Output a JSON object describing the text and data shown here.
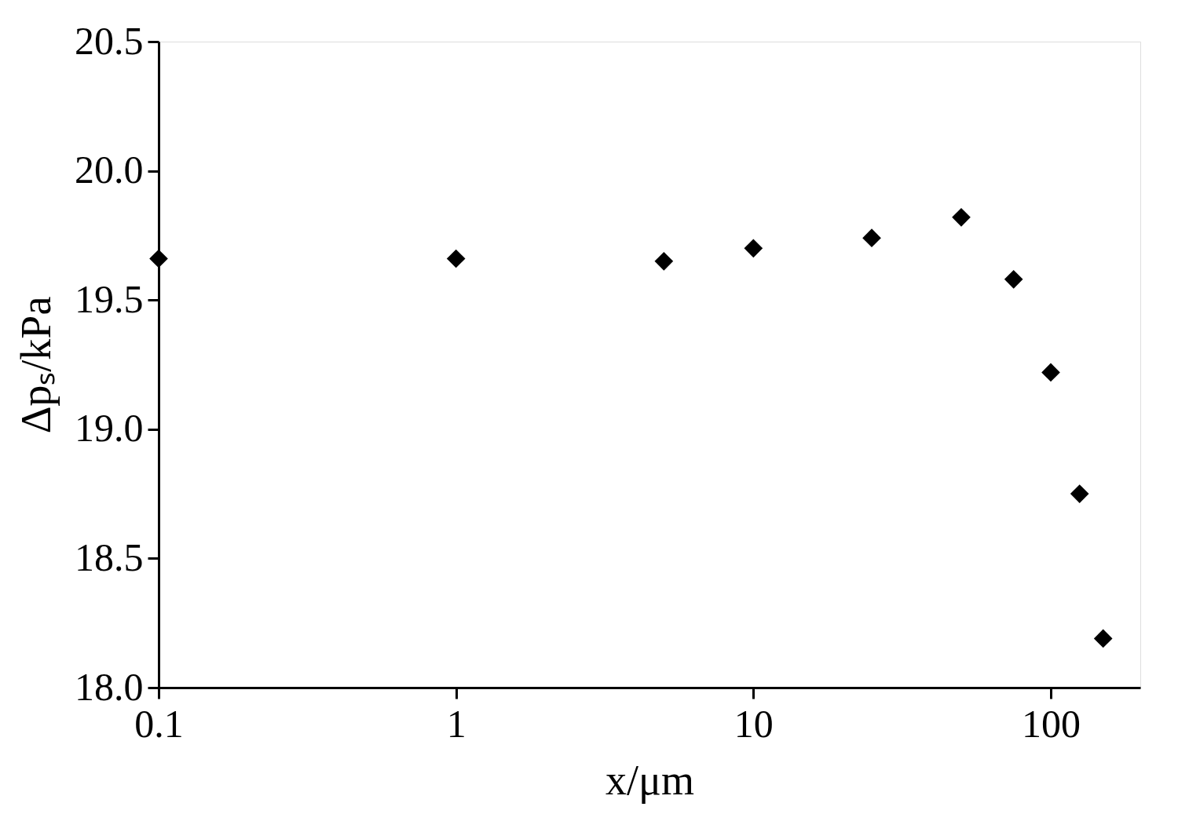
{
  "chart_data": {
    "type": "scatter",
    "xlabel": "x/μm",
    "ylabel": "Δpₛ/kPa",
    "log": "x",
    "x": [
      0.1,
      1,
      5,
      10,
      25,
      50,
      75,
      100,
      125,
      150
    ],
    "series": [
      {
        "color": "#000000",
        "values": [
          19.66,
          19.66,
          19.65,
          19.7,
          19.74,
          19.82,
          19.58,
          19.22,
          18.75,
          18.19
        ]
      }
    ],
    "xlim": [
      0.1,
      200
    ],
    "xticks": [
      0.1,
      1,
      10,
      100
    ],
    "ylim": [
      18.0,
      20.5
    ],
    "yticks": [
      {
        "value": 18,
        "label": "18.0"
      },
      {
        "value": 18.5,
        "label": "18.5"
      },
      {
        "value": 19,
        "label": "19.0"
      },
      {
        "value": 19.5,
        "label": "19.5"
      },
      {
        "value": 20,
        "label": "20.0"
      },
      {
        "value": 20.5,
        "label": "20.5"
      }
    ],
    "marker": "diamond",
    "grid": false,
    "legend": false
  }
}
